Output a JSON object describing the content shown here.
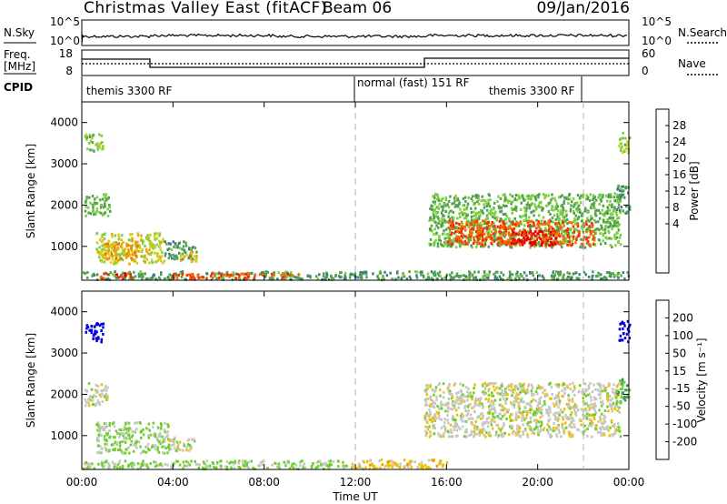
{
  "header": {
    "title": "Christmas Valley East (fitACF)",
    "beam": "Beam 06",
    "date": "09/Jan/2016"
  },
  "panels": {
    "nsky": {
      "left_label": "N.Sky",
      "right_label": "N.Search",
      "left_ticks": [
        "10^5",
        "10^0"
      ],
      "right_ticks": [
        "10^5",
        "10^0"
      ]
    },
    "freq": {
      "left_label_1": "Freq.",
      "left_label_2": "[MHz]",
      "right_label": "Nave",
      "left_ticks": [
        "18",
        "8"
      ],
      "right_ticks": [
        "60",
        "0"
      ]
    },
    "cpid": {
      "label": "CPID",
      "segments": [
        {
          "text": "themis 3300 RF",
          "start_hour": 0
        },
        {
          "text": "normal (fast) 151 RF",
          "start_hour": 12
        },
        {
          "text": "themis 3300 RF",
          "start_hour": 22
        }
      ],
      "repeat_label_hour": 15.4
    }
  },
  "axes": {
    "ylabel": "Slant Range [km]",
    "xlabel": "Time UT",
    "x_ticks": [
      "00:00",
      "04:00",
      "08:00",
      "12:00",
      "16:00",
      "20:00",
      "00:00"
    ],
    "y_ticks": [
      "1000",
      "2000",
      "3000",
      "4000"
    ]
  },
  "colorbars": {
    "power": {
      "label": "Power [dB]",
      "ticks": [
        "28",
        "24",
        "20",
        "16",
        "12",
        "8",
        "4"
      ],
      "colors": [
        "#0000ff",
        "#2050a0",
        "#3f7f7f",
        "#50a050",
        "#7fcf3f",
        "#cfcf20",
        "#f0a000",
        "#f07000",
        "#f03000",
        "#e00000"
      ]
    },
    "velocity": {
      "label": "Velocity [m s⁻¹]",
      "ticks": [
        "200",
        "100",
        "50",
        "15",
        "-15",
        "-50",
        "-100",
        "-200"
      ],
      "colors": [
        "#0000e0",
        "#2040a0",
        "#3f8f5f",
        "#70cf30",
        "#c8c8c0",
        "#f0c000",
        "#f09000",
        "#f06000",
        "#e00000"
      ]
    }
  },
  "chart_data": [
    {
      "type": "heatmap",
      "title": "Power",
      "x_unit": "hours UT",
      "xlim": [
        0,
        24
      ],
      "ylim": [
        180,
        4500
      ],
      "clim": [
        0,
        30
      ],
      "clusters": [
        {
          "t0": 0.1,
          "t1": 0.9,
          "r0": 3300,
          "r1": 3750,
          "v": 14
        },
        {
          "t0": 0.1,
          "t1": 1.2,
          "r0": 1750,
          "r1": 2300,
          "v": 12
        },
        {
          "t0": 0.6,
          "t1": 3.6,
          "r0": 600,
          "r1": 1350,
          "v": 16
        },
        {
          "t0": 0.8,
          "t1": 2.4,
          "r0": 700,
          "r1": 1100,
          "v": 20
        },
        {
          "t0": 3.6,
          "t1": 5.0,
          "r0": 700,
          "r1": 1150,
          "v": 10
        },
        {
          "t0": 4.2,
          "t1": 5.0,
          "r0": 650,
          "r1": 900,
          "v": 18
        },
        {
          "t0": 0.0,
          "t1": 24.0,
          "r0": 220,
          "r1": 420,
          "v": 10
        },
        {
          "t0": 0.8,
          "t1": 2.2,
          "r0": 250,
          "r1": 380,
          "v": 26
        },
        {
          "t0": 3.8,
          "t1": 9.5,
          "r0": 250,
          "r1": 380,
          "v": 24
        },
        {
          "t0": 15.2,
          "t1": 23.6,
          "r0": 1000,
          "r1": 2300,
          "v": 12
        },
        {
          "t0": 16.0,
          "t1": 22.5,
          "r0": 1050,
          "r1": 1650,
          "v": 24
        },
        {
          "t0": 18.8,
          "t1": 20.8,
          "r0": 1050,
          "r1": 1400,
          "v": 28
        },
        {
          "t0": 23.5,
          "t1": 24.0,
          "r0": 3300,
          "r1": 3800,
          "v": 14
        },
        {
          "t0": 23.3,
          "t1": 24.0,
          "r0": 1800,
          "r1": 2500,
          "v": 10
        }
      ],
      "colorbar": "power"
    },
    {
      "type": "heatmap",
      "title": "Velocity",
      "x_unit": "hours UT",
      "xlim": [
        0,
        24
      ],
      "ylim": [
        180,
        4500
      ],
      "clim": [
        -200,
        200
      ],
      "clusters": [
        {
          "t0": 0.1,
          "t1": 0.9,
          "r0": 3300,
          "r1": 3750,
          "v": 200
        },
        {
          "t0": 0.1,
          "t1": 1.1,
          "r0": 1750,
          "r1": 2300,
          "v": 0
        },
        {
          "t0": 0.6,
          "t1": 3.8,
          "r0": 600,
          "r1": 1350,
          "v": 30
        },
        {
          "t0": 3.8,
          "t1": 4.9,
          "r0": 650,
          "r1": 1000,
          "v": 0
        },
        {
          "t0": 0.0,
          "t1": 11.8,
          "r0": 220,
          "r1": 420,
          "v": 30
        },
        {
          "t0": 11.8,
          "t1": 16.0,
          "r0": 220,
          "r1": 450,
          "v": -40
        },
        {
          "t0": 15.0,
          "t1": 23.6,
          "r0": 1000,
          "r1": 2300,
          "v": 0
        },
        {
          "t0": 23.5,
          "t1": 24.0,
          "r0": 3300,
          "r1": 3800,
          "v": 200
        },
        {
          "t0": 23.4,
          "t1": 24.0,
          "r0": 1800,
          "r1": 2400,
          "v": 60
        }
      ],
      "colorbar": "velocity"
    }
  ]
}
